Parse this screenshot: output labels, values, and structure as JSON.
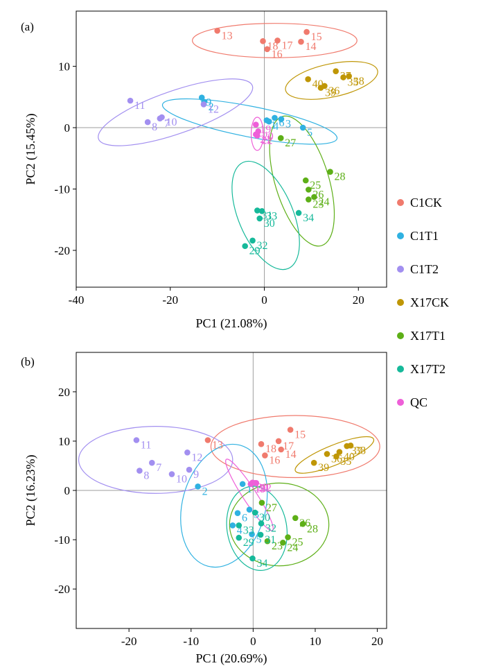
{
  "chart_data": [
    {
      "type": "scatter",
      "panel_label": "(a)",
      "xlabel": "PC1 (21.08%)",
      "ylabel": "PC2 (15.45%)",
      "xlim": [
        -40,
        26
      ],
      "ylim": [
        -26,
        19
      ],
      "xticks": [
        -40,
        -20,
        0,
        20
      ],
      "yticks": [
        -20,
        -10,
        0,
        10
      ],
      "points": [
        {
          "id": "13",
          "g": "C1CK",
          "x": -10,
          "y": 15.8
        },
        {
          "id": "18",
          "g": "C1CK",
          "x": -0.3,
          "y": 14.1
        },
        {
          "id": "16",
          "g": "C1CK",
          "x": 0.6,
          "y": 12.8
        },
        {
          "id": "17",
          "g": "C1CK",
          "x": 2.8,
          "y": 14.2
        },
        {
          "id": "14",
          "g": "C1CK",
          "x": 7.8,
          "y": 14.0
        },
        {
          "id": "15",
          "g": "C1CK",
          "x": 9.0,
          "y": 15.6
        },
        {
          "id": "9",
          "g": "C1T1",
          "x": -13.3,
          "y": 4.9
        },
        {
          "id": "2",
          "g": "C1T1",
          "x": -12.8,
          "y": 4.2
        },
        {
          "id": "1",
          "g": "C1T1",
          "x": 0.5,
          "y": 1.2
        },
        {
          "id": "6",
          "g": "C1T1",
          "x": 2.2,
          "y": 1.6
        },
        {
          "id": "4",
          "g": "C1T1",
          "x": 1.0,
          "y": 1.0
        },
        {
          "id": "3",
          "g": "C1T1",
          "x": 3.6,
          "y": 1.4
        },
        {
          "id": "5",
          "g": "C1T1",
          "x": 8.2,
          "y": 0.0
        },
        {
          "id": "11",
          "g": "C1T2",
          "x": -28.5,
          "y": 4.4
        },
        {
          "id": "8",
          "g": "C1T2",
          "x": -24.8,
          "y": 0.9
        },
        {
          "id": "7",
          "g": "C1T2",
          "x": -22.2,
          "y": 1.5
        },
        {
          "id": "10",
          "g": "C1T2",
          "x": -21.8,
          "y": 1.7
        },
        {
          "id": "12",
          "g": "C1T2",
          "x": -12.9,
          "y": 3.8
        },
        {
          "id": "37",
          "g": "X17CK",
          "x": 15.2,
          "y": 9.2
        },
        {
          "id": "40",
          "g": "X17CK",
          "x": 9.3,
          "y": 7.9
        },
        {
          "id": "38",
          "g": "X17CK",
          "x": 18.0,
          "y": 8.4
        },
        {
          "id": "39",
          "g": "X17CK",
          "x": 12.0,
          "y": 6.5
        },
        {
          "id": "36",
          "g": "X17CK",
          "x": 12.8,
          "y": 6.8
        },
        {
          "id": "35",
          "g": "X17CK",
          "x": 16.8,
          "y": 8.2
        },
        {
          "id": "27",
          "g": "X17T1",
          "x": 3.5,
          "y": -1.7
        },
        {
          "id": "28",
          "g": "X17T1",
          "x": 14.0,
          "y": -7.2
        },
        {
          "id": "25",
          "g": "X17T1",
          "x": 8.8,
          "y": -8.6
        },
        {
          "id": "26",
          "g": "X17T1",
          "x": 9.4,
          "y": -10.1
        },
        {
          "id": "23",
          "g": "X17T1",
          "x": 9.4,
          "y": -11.7
        },
        {
          "id": "24",
          "g": "X17T1",
          "x": 10.6,
          "y": -11.3
        },
        {
          "id": "31",
          "g": "X17T2",
          "x": -1.5,
          "y": -13.5
        },
        {
          "id": "33",
          "g": "X17T2",
          "x": -0.5,
          "y": -13.6
        },
        {
          "id": "30",
          "g": "X17T2",
          "x": -1.0,
          "y": -14.8
        },
        {
          "id": "34",
          "g": "X17T2",
          "x": 7.3,
          "y": -13.9
        },
        {
          "id": "32",
          "g": "X17T2",
          "x": -2.5,
          "y": -18.4
        },
        {
          "id": "29",
          "g": "X17T2",
          "x": -4.1,
          "y": -19.3
        },
        {
          "id": "19",
          "g": "QC",
          "x": -1.8,
          "y": 0.5
        },
        {
          "id": "21",
          "g": "QC",
          "x": -1.8,
          "y": -1.1
        },
        {
          "id": "20",
          "g": "QC",
          "x": -1.3,
          "y": -0.6
        },
        {
          "id": "22",
          "g": "QC",
          "x": -1.5,
          "y": -1.3
        }
      ],
      "ellipses": [
        {
          "g": "C1CK",
          "cx": 2.2,
          "cy": 14.2,
          "rx": 17.5,
          "ry": 2.8,
          "angle": 0
        },
        {
          "g": "C1T1",
          "cx": -3.1,
          "cy": 1.0,
          "rx": 18.9,
          "ry": 2.5,
          "angle": -11
        },
        {
          "g": "C1T2",
          "cx": -18.9,
          "cy": 2.5,
          "rx": 17.3,
          "ry": 3.5,
          "angle": 19
        },
        {
          "g": "X17CK",
          "cx": 14.3,
          "cy": 7.7,
          "rx": 10.0,
          "ry": 2.7,
          "angle": 12
        },
        {
          "g": "X17T1",
          "cx": 8.0,
          "cy": -8.7,
          "rx": 5.7,
          "ry": 11.0,
          "angle": 17
        },
        {
          "g": "X17T2",
          "cx": 0.3,
          "cy": -14.3,
          "rx": 5.8,
          "ry": 9.4,
          "angle": 23
        },
        {
          "g": "QC",
          "cx": -1.5,
          "cy": -1.0,
          "rx": 1.3,
          "ry": 2.7,
          "angle": 0
        }
      ]
    },
    {
      "type": "scatter",
      "panel_label": "(b)",
      "xlabel": "PC1 (20.69%)",
      "ylabel": "PC2 (16.23%)",
      "xlim": [
        -28.5,
        21.5
      ],
      "ylim": [
        -28,
        28
      ],
      "xticks": [
        -20,
        -10,
        0,
        10,
        20
      ],
      "yticks": [
        -20,
        -10,
        0,
        10,
        20
      ],
      "points": [
        {
          "id": "13",
          "g": "C1CK",
          "x": -7.3,
          "y": 10.2
        },
        {
          "id": "18",
          "g": "C1CK",
          "x": 1.3,
          "y": 9.4
        },
        {
          "id": "17",
          "g": "C1CK",
          "x": 4.1,
          "y": 10.0
        },
        {
          "id": "15",
          "g": "C1CK",
          "x": 6.0,
          "y": 12.3
        },
        {
          "id": "16",
          "g": "C1CK",
          "x": 1.9,
          "y": 7.1
        },
        {
          "id": "14",
          "g": "C1CK",
          "x": 4.5,
          "y": 8.3
        },
        {
          "id": "2",
          "g": "C1T1",
          "x": -8.9,
          "y": 0.8
        },
        {
          "id": "1",
          "g": "C1T1",
          "x": -1.7,
          "y": 1.3
        },
        {
          "id": "6",
          "g": "C1T1",
          "x": -2.5,
          "y": -4.6
        },
        {
          "id": "4",
          "g": "C1T1",
          "x": -3.3,
          "y": -7.1
        },
        {
          "id": "3",
          "g": "C1T1",
          "x": -0.6,
          "y": -3.9
        },
        {
          "id": "5",
          "g": "C1T1",
          "x": -0.2,
          "y": -8.9
        },
        {
          "id": "11",
          "g": "C1T2",
          "x": -18.8,
          "y": 10.2
        },
        {
          "id": "12",
          "g": "C1T2",
          "x": -10.6,
          "y": 7.7
        },
        {
          "id": "7",
          "g": "C1T2",
          "x": -16.3,
          "y": 5.6
        },
        {
          "id": "8",
          "g": "C1T2",
          "x": -18.3,
          "y": 4.0
        },
        {
          "id": "9",
          "g": "C1T2",
          "x": -10.3,
          "y": 4.2
        },
        {
          "id": "10",
          "g": "C1T2",
          "x": -13.1,
          "y": 3.3
        },
        {
          "id": "37",
          "g": "X17CK",
          "x": 15.1,
          "y": 9.0
        },
        {
          "id": "36",
          "g": "X17CK",
          "x": 11.9,
          "y": 7.4
        },
        {
          "id": "38",
          "g": "X17CK",
          "x": 15.7,
          "y": 9.1
        },
        {
          "id": "35",
          "g": "X17CK",
          "x": 13.4,
          "y": 6.9
        },
        {
          "id": "40",
          "g": "X17CK",
          "x": 13.9,
          "y": 7.8
        },
        {
          "id": "39",
          "g": "X17CK",
          "x": 9.8,
          "y": 5.6
        },
        {
          "id": "27",
          "g": "X17T1",
          "x": 1.4,
          "y": -2.5
        },
        {
          "id": "26",
          "g": "X17T1",
          "x": 6.8,
          "y": -5.6
        },
        {
          "id": "28",
          "g": "X17T1",
          "x": 8.0,
          "y": -6.8
        },
        {
          "id": "25",
          "g": "X17T1",
          "x": 5.6,
          "y": -9.5
        },
        {
          "id": "23",
          "g": "X17T1",
          "x": 2.3,
          "y": -10.3
        },
        {
          "id": "24",
          "g": "X17T1",
          "x": 4.8,
          "y": -10.6
        },
        {
          "id": "30",
          "g": "X17T2",
          "x": 0.3,
          "y": -4.5
        },
        {
          "id": "33",
          "g": "X17T2",
          "x": -2.3,
          "y": -7.1
        },
        {
          "id": "32",
          "g": "X17T2",
          "x": 1.3,
          "y": -6.7
        },
        {
          "id": "31",
          "g": "X17T2",
          "x": 1.2,
          "y": -9.0
        },
        {
          "id": "29",
          "g": "X17T2",
          "x": -2.3,
          "y": -9.6
        },
        {
          "id": "34",
          "g": "X17T2",
          "x": -0.1,
          "y": -13.8
        },
        {
          "id": "20",
          "g": "QC",
          "x": -0.1,
          "y": 1.6
        },
        {
          "id": "22",
          "g": "QC",
          "x": 0.5,
          "y": 1.5
        },
        {
          "id": "19",
          "g": "QC",
          "x": -0.4,
          "y": 1.3
        },
        {
          "id": "21",
          "g": "QC",
          "x": 0.3,
          "y": 1.5
        }
      ],
      "ellipses": [
        {
          "g": "C1CK",
          "cx": 6.8,
          "cy": 8.9,
          "rx": 13.6,
          "ry": 6.3,
          "angle": 0
        },
        {
          "g": "C1T1",
          "cx": -4.7,
          "cy": -3.1,
          "rx": 6.7,
          "ry": 12.7,
          "angle": -15
        },
        {
          "g": "C1T2",
          "cx": -15.7,
          "cy": 6.2,
          "rx": 12.4,
          "ry": 6.8,
          "angle": 0
        },
        {
          "g": "X17CK",
          "cx": 13.1,
          "cy": 7.2,
          "rx": 6.8,
          "ry": 2.0,
          "angle": 22
        },
        {
          "g": "X17T1",
          "cx": 4.2,
          "cy": -6.9,
          "rx": 8.0,
          "ry": 8.4,
          "angle": 0
        },
        {
          "g": "X17T2",
          "cx": 0.6,
          "cy": -7.7,
          "rx": 4.8,
          "ry": 8.6,
          "angle": 10
        },
        {
          "g": "QC",
          "cx": -0.6,
          "cy": -0.9,
          "rx": 1.1,
          "ry": 8.6,
          "angle": 33
        }
      ]
    }
  ],
  "legend": [
    {
      "label": "C1CK",
      "color": "#f07a6d"
    },
    {
      "label": "C1T1",
      "color": "#2fb1e1"
    },
    {
      "label": "C1T2",
      "color": "#a28ff0"
    },
    {
      "label": "X17CK",
      "color": "#bf9605"
    },
    {
      "label": "X17T1",
      "color": "#5daf17"
    },
    {
      "label": "X17T2",
      "color": "#16b99a"
    },
    {
      "label": "QC",
      "color": "#ee5fd8"
    }
  ],
  "legend_placement": "right"
}
